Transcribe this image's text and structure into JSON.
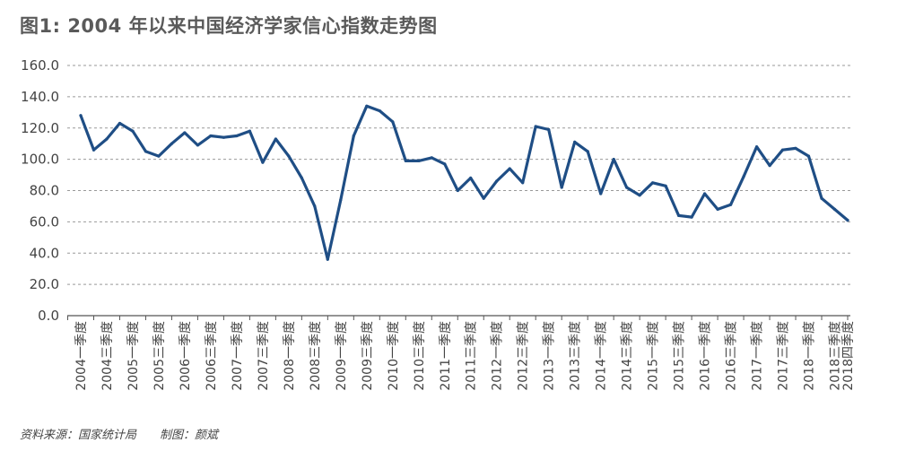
{
  "title": "图1: 2004 年以来中国经济学家信心指数走势图",
  "source": "资料来源：国家统计局",
  "author": "制图：颜斌",
  "colors": {
    "line": "#1f4e85",
    "grid": "#999999",
    "axis": "#555555",
    "text": "#444444"
  },
  "chart_data": {
    "type": "line",
    "title": "图1: 2004 年以来中国经济学家信心指数走势图",
    "xlabel": "",
    "ylabel": "",
    "ylim": [
      0,
      160
    ],
    "yticks": [
      "0.0",
      "20.0",
      "40.0",
      "60.0",
      "80.0",
      "100.0",
      "120.0",
      "140.0",
      "160.0"
    ],
    "grid": true,
    "legend": "none",
    "x_labels": [
      "2004一季度",
      "2004三季度",
      "2005一季度",
      "2005三季度",
      "2006一季度",
      "2006三季度",
      "2007一季度",
      "2007三季度",
      "2008一季度",
      "2008三季度",
      "2009一季度",
      "2009三季度",
      "2010一季度",
      "2010三季度",
      "2011一季度",
      "2011三季度",
      "2012一季度",
      "2012三季度",
      "2013一季度",
      "2013三季度",
      "2014一季度",
      "2014三季度",
      "2015一季度",
      "2015三季度",
      "2016一季度",
      "2016三季度",
      "2017一季度",
      "2017三季度",
      "2018一季度",
      "2018三季度",
      "2018四季度"
    ],
    "x_label_positions": [
      0,
      2,
      4,
      6,
      8,
      10,
      12,
      14,
      16,
      18,
      20,
      22,
      24,
      26,
      28,
      30,
      32,
      34,
      36,
      38,
      40,
      42,
      44,
      46,
      48,
      50,
      52,
      54,
      56,
      58,
      59
    ],
    "values": [
      128,
      106,
      113,
      123,
      118,
      105,
      102,
      110,
      117,
      109,
      115,
      114,
      115,
      118,
      98,
      113,
      102,
      88,
      70,
      36,
      74,
      115,
      134,
      131,
      124,
      99,
      99,
      101,
      97,
      80,
      88,
      75,
      86,
      94,
      85,
      121,
      119,
      82,
      111,
      105,
      78,
      100,
      82,
      77,
      85,
      83,
      64,
      63,
      78,
      68,
      71,
      89,
      108,
      96,
      106,
      107,
      102,
      75,
      68,
      61
    ]
  }
}
